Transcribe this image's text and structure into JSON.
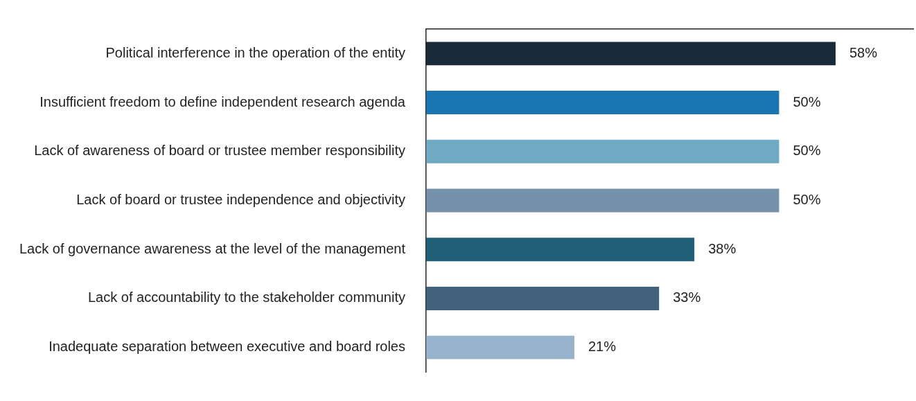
{
  "chart_data": {
    "type": "bar",
    "orientation": "horizontal",
    "categories": [
      "Political interference in the operation of the entity",
      "Insufficient freedom to define independent research agenda",
      "Lack of awareness of board or trustee member responsibility",
      "Lack of board or trustee independence and objectivity",
      "Lack of governance awareness at the level of the management",
      "Lack of accountability to the stakeholder community",
      "Inadequate separation between executive and board roles"
    ],
    "values": [
      58,
      50,
      50,
      50,
      38,
      33,
      21
    ],
    "colors": [
      "#192a38",
      "#1a75b0",
      "#6eaac4",
      "#7592aa",
      "#206078",
      "#40607c",
      "#96b2cc"
    ],
    "value_labels": [
      "58%",
      "50%",
      "50%",
      "50%",
      "38%",
      "33%",
      "21%"
    ],
    "xlim": [
      0,
      69
    ],
    "grid": false,
    "legend": false
  }
}
